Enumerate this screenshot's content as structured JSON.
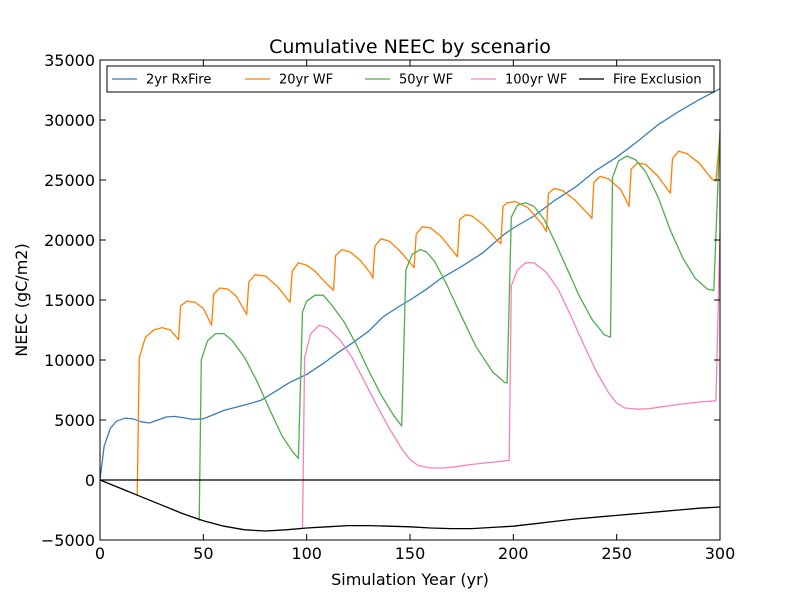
{
  "chart_data": {
    "type": "line",
    "title": "Cumulative NEEC by scenario",
    "xlabel": "Simulation Year (yr)",
    "ylabel": "NEEC (gC/m2)",
    "xlim": [
      0,
      300
    ],
    "ylim": [
      -5000,
      35000
    ],
    "x_ticks": [
      0,
      50,
      100,
      150,
      200,
      250,
      300
    ],
    "y_ticks": [
      -5000,
      0,
      5000,
      10000,
      15000,
      20000,
      25000,
      30000,
      35000
    ],
    "x_tick_labels": [
      "0",
      "50",
      "100",
      "150",
      "200",
      "250",
      "300"
    ],
    "y_tick_labels": [
      "−5000",
      "0",
      "5000",
      "10000",
      "15000",
      "20000",
      "25000",
      "30000",
      "35000"
    ],
    "grid": false,
    "legend_position": "top",
    "zero_line": 0,
    "series": [
      {
        "name": "2yr RxFire",
        "color": "#377eb8",
        "points": [
          [
            0,
            0
          ],
          [
            2,
            2800
          ],
          [
            5,
            4300
          ],
          [
            8,
            4900
          ],
          [
            12,
            5150
          ],
          [
            16,
            5100
          ],
          [
            20,
            4850
          ],
          [
            24,
            4750
          ],
          [
            28,
            5000
          ],
          [
            32,
            5250
          ],
          [
            36,
            5300
          ],
          [
            40,
            5200
          ],
          [
            45,
            5050
          ],
          [
            50,
            5100
          ],
          [
            55,
            5450
          ],
          [
            60,
            5800
          ],
          [
            70,
            6250
          ],
          [
            78,
            6650
          ],
          [
            85,
            7400
          ],
          [
            92,
            8150
          ],
          [
            100,
            8800
          ],
          [
            108,
            9700
          ],
          [
            115,
            10600
          ],
          [
            122,
            11400
          ],
          [
            130,
            12400
          ],
          [
            137,
            13600
          ],
          [
            145,
            14500
          ],
          [
            150,
            15000
          ],
          [
            158,
            15900
          ],
          [
            165,
            16800
          ],
          [
            175,
            17800
          ],
          [
            185,
            18900
          ],
          [
            195,
            20400
          ],
          [
            200,
            21000
          ],
          [
            210,
            22000
          ],
          [
            220,
            23300
          ],
          [
            230,
            24400
          ],
          [
            240,
            25800
          ],
          [
            250,
            26900
          ],
          [
            260,
            28200
          ],
          [
            270,
            29600
          ],
          [
            280,
            30700
          ],
          [
            290,
            31700
          ],
          [
            300,
            32600
          ]
        ]
      },
      {
        "name": "20yr WF",
        "color": "#ff7f00",
        "points": [
          [
            18,
            -1300
          ],
          [
            19,
            10200
          ],
          [
            22,
            11900
          ],
          [
            26,
            12500
          ],
          [
            30,
            12700
          ],
          [
            34,
            12500
          ],
          [
            38,
            11700
          ],
          [
            39,
            14500
          ],
          [
            42,
            14900
          ],
          [
            46,
            14800
          ],
          [
            50,
            14300
          ],
          [
            54,
            12900
          ],
          [
            55,
            15500
          ],
          [
            58,
            16000
          ],
          [
            62,
            15900
          ],
          [
            66,
            15300
          ],
          [
            71,
            13800
          ],
          [
            72,
            16500
          ],
          [
            75,
            17100
          ],
          [
            80,
            17000
          ],
          [
            86,
            16100
          ],
          [
            92,
            14800
          ],
          [
            93,
            17400
          ],
          [
            96,
            18100
          ],
          [
            100,
            17900
          ],
          [
            104,
            17400
          ],
          [
            110,
            16300
          ],
          [
            113,
            15800
          ],
          [
            114,
            18700
          ],
          [
            117,
            19200
          ],
          [
            121,
            19000
          ],
          [
            126,
            18300
          ],
          [
            131,
            17200
          ],
          [
            132,
            16800
          ],
          [
            133,
            19500
          ],
          [
            136,
            20100
          ],
          [
            140,
            19900
          ],
          [
            145,
            19100
          ],
          [
            152,
            17700
          ],
          [
            153,
            20500
          ],
          [
            156,
            21100
          ],
          [
            160,
            21000
          ],
          [
            165,
            20300
          ],
          [
            173,
            18600
          ],
          [
            174,
            21700
          ],
          [
            177,
            22100
          ],
          [
            180,
            22000
          ],
          [
            186,
            21200
          ],
          [
            192,
            20000
          ],
          [
            194,
            19700
          ],
          [
            195,
            22800
          ],
          [
            197,
            23100
          ],
          [
            201,
            23200
          ],
          [
            207,
            22700
          ],
          [
            214,
            21300
          ],
          [
            216,
            20700
          ],
          [
            217,
            23900
          ],
          [
            220,
            24300
          ],
          [
            224,
            24100
          ],
          [
            230,
            23300
          ],
          [
            236,
            22200
          ],
          [
            238,
            21800
          ],
          [
            239,
            24800
          ],
          [
            242,
            25300
          ],
          [
            246,
            25100
          ],
          [
            252,
            24200
          ],
          [
            256,
            22800
          ],
          [
            257,
            25900
          ],
          [
            260,
            26400
          ],
          [
            264,
            26300
          ],
          [
            270,
            25300
          ],
          [
            276,
            23900
          ],
          [
            277,
            26800
          ],
          [
            280,
            27400
          ],
          [
            284,
            27200
          ],
          [
            290,
            26400
          ],
          [
            296,
            25100
          ],
          [
            298,
            24900
          ],
          [
            300,
            28800
          ]
        ]
      },
      {
        "name": "50yr WF",
        "color": "#4daf4a",
        "points": [
          [
            48,
            -3400
          ],
          [
            49,
            10000
          ],
          [
            52,
            11600
          ],
          [
            56,
            12200
          ],
          [
            60,
            12200
          ],
          [
            64,
            11600
          ],
          [
            70,
            10200
          ],
          [
            76,
            8200
          ],
          [
            82,
            5900
          ],
          [
            88,
            3700
          ],
          [
            93,
            2400
          ],
          [
            96,
            1800
          ],
          [
            98,
            14000
          ],
          [
            100,
            14900
          ],
          [
            104,
            15400
          ],
          [
            108,
            15400
          ],
          [
            112,
            14600
          ],
          [
            118,
            13200
          ],
          [
            124,
            11300
          ],
          [
            130,
            9100
          ],
          [
            136,
            7100
          ],
          [
            142,
            5400
          ],
          [
            146,
            4500
          ],
          [
            148,
            17500
          ],
          [
            151,
            18800
          ],
          [
            155,
            19200
          ],
          [
            158,
            19000
          ],
          [
            162,
            18200
          ],
          [
            168,
            16200
          ],
          [
            175,
            13600
          ],
          [
            182,
            11100
          ],
          [
            190,
            9000
          ],
          [
            196,
            8100
          ],
          [
            197,
            8100
          ],
          [
            199,
            21900
          ],
          [
            202,
            22900
          ],
          [
            206,
            23100
          ],
          [
            210,
            22800
          ],
          [
            215,
            21700
          ],
          [
            220,
            19900
          ],
          [
            226,
            17600
          ],
          [
            232,
            15300
          ],
          [
            238,
            13400
          ],
          [
            244,
            12100
          ],
          [
            247,
            11900
          ],
          [
            248,
            25200
          ],
          [
            251,
            26600
          ],
          [
            255,
            27000
          ],
          [
            259,
            26700
          ],
          [
            264,
            25700
          ],
          [
            270,
            23600
          ],
          [
            276,
            20800
          ],
          [
            282,
            18500
          ],
          [
            288,
            16800
          ],
          [
            294,
            15900
          ],
          [
            297,
            15800
          ],
          [
            300,
            29100
          ]
        ]
      },
      {
        "name": "100yr WF",
        "color": "#f781bf",
        "points": [
          [
            98,
            -4000
          ],
          [
            99,
            10200
          ],
          [
            102,
            12200
          ],
          [
            106,
            12900
          ],
          [
            110,
            12700
          ],
          [
            116,
            11700
          ],
          [
            122,
            10200
          ],
          [
            128,
            8200
          ],
          [
            134,
            6200
          ],
          [
            140,
            4300
          ],
          [
            146,
            2600
          ],
          [
            150,
            1700
          ],
          [
            154,
            1200
          ],
          [
            160,
            1000
          ],
          [
            166,
            1000
          ],
          [
            172,
            1100
          ],
          [
            180,
            1300
          ],
          [
            188,
            1450
          ],
          [
            196,
            1600
          ],
          [
            198,
            1650
          ],
          [
            199,
            16200
          ],
          [
            202,
            17500
          ],
          [
            206,
            18100
          ],
          [
            210,
            18100
          ],
          [
            216,
            17300
          ],
          [
            222,
            15800
          ],
          [
            228,
            13600
          ],
          [
            234,
            11300
          ],
          [
            240,
            9100
          ],
          [
            246,
            7300
          ],
          [
            250,
            6400
          ],
          [
            254,
            6000
          ],
          [
            260,
            5900
          ],
          [
            266,
            5950
          ],
          [
            272,
            6100
          ],
          [
            280,
            6300
          ],
          [
            290,
            6500
          ],
          [
            298,
            6600
          ],
          [
            300,
            20500
          ]
        ]
      },
      {
        "name": "Fire Exclusion",
        "color": "#000000",
        "points": [
          [
            0,
            0
          ],
          [
            10,
            -700
          ],
          [
            20,
            -1400
          ],
          [
            30,
            -2100
          ],
          [
            40,
            -2800
          ],
          [
            50,
            -3400
          ],
          [
            60,
            -3850
          ],
          [
            70,
            -4150
          ],
          [
            80,
            -4250
          ],
          [
            90,
            -4150
          ],
          [
            100,
            -4000
          ],
          [
            110,
            -3900
          ],
          [
            120,
            -3800
          ],
          [
            130,
            -3800
          ],
          [
            140,
            -3850
          ],
          [
            150,
            -3900
          ],
          [
            160,
            -4000
          ],
          [
            170,
            -4050
          ],
          [
            180,
            -4050
          ],
          [
            190,
            -3950
          ],
          [
            200,
            -3850
          ],
          [
            210,
            -3650
          ],
          [
            220,
            -3450
          ],
          [
            230,
            -3250
          ],
          [
            240,
            -3100
          ],
          [
            250,
            -2950
          ],
          [
            260,
            -2800
          ],
          [
            270,
            -2650
          ],
          [
            280,
            -2500
          ],
          [
            290,
            -2350
          ],
          [
            300,
            -2250
          ]
        ]
      }
    ]
  }
}
